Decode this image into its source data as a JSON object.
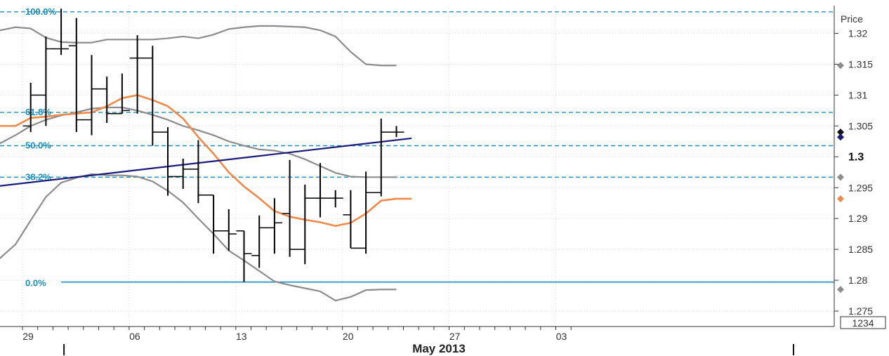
{
  "chart_data": {
    "type": "ohlc",
    "title": "",
    "ylabel": "Price",
    "ylim": [
      1.2725,
      1.3245
    ],
    "y_ticks": [
      "1.32",
      "1.315",
      "1.31",
      "1.305",
      "1.3",
      "1.295",
      "1.29",
      "1.285",
      "1.28",
      "1.275"
    ],
    "y_tick_values": [
      1.32,
      1.315,
      1.31,
      1.305,
      1.3,
      1.295,
      1.29,
      1.285,
      1.28,
      1.275
    ],
    "highlight_tick": "1.3",
    "x_tick_labels": [
      "29",
      "06",
      "13",
      "20",
      "27",
      "03"
    ],
    "x_tick_days": [
      0,
      7,
      14,
      21,
      28,
      35
    ],
    "month_label": "May 2013",
    "corner_label": "1234",
    "fibonacci_levels": [
      {
        "label": "100.0%",
        "value": 1.3235
      },
      {
        "label": "61.8%",
        "value": 1.3072
      },
      {
        "label": "50.0%",
        "value": 1.3018
      },
      {
        "label": "38.2%",
        "value": 1.2967
      },
      {
        "label": "0.0%",
        "value": 1.2797
      }
    ],
    "bars": [
      {
        "day": 1,
        "open": 1.305,
        "high": 1.312,
        "low": 1.304,
        "close": 1.31
      },
      {
        "day": 2,
        "open": 1.31,
        "high": 1.3195,
        "low": 1.305,
        "close": 1.3175
      },
      {
        "day": 3,
        "open": 1.3175,
        "high": 1.324,
        "low": 1.3165,
        "close": 1.3175
      },
      {
        "day": 4,
        "open": 1.318,
        "high": 1.3225,
        "low": 1.304,
        "close": 1.306
      },
      {
        "day": 5,
        "open": 1.306,
        "high": 1.3165,
        "low": 1.3035,
        "close": 1.311
      },
      {
        "day": 6,
        "open": 1.311,
        "high": 1.313,
        "low": 1.3055,
        "close": 1.307
      },
      {
        "day": 7,
        "open": 1.307,
        "high": 1.3135,
        "low": 1.307,
        "close": 1.3075
      },
      {
        "day": 8,
        "open": 1.316,
        "high": 1.3197,
        "low": 1.307,
        "close": 1.316
      },
      {
        "day": 9,
        "open": 1.316,
        "high": 1.318,
        "low": 1.3018,
        "close": 1.304
      },
      {
        "day": 10,
        "open": 1.304,
        "high": 1.3048,
        "low": 1.2937,
        "close": 1.2968
      },
      {
        "day": 11,
        "open": 1.2968,
        "high": 1.2997,
        "low": 1.2948,
        "close": 1.298
      },
      {
        "day": 12,
        "open": 1.298,
        "high": 1.3027,
        "low": 1.2925,
        "close": 1.2938
      },
      {
        "day": 13,
        "open": 1.2938,
        "high": 1.2938,
        "low": 1.2843,
        "close": 1.288
      },
      {
        "day": 14,
        "open": 1.288,
        "high": 1.2915,
        "low": 1.2848,
        "close": 1.2875
      },
      {
        "day": 15,
        "open": 1.288,
        "high": 1.288,
        "low": 1.2797,
        "close": 1.2843
      },
      {
        "day": 16,
        "open": 1.284,
        "high": 1.2905,
        "low": 1.282,
        "close": 1.2885
      },
      {
        "day": 17,
        "open": 1.2885,
        "high": 1.2933,
        "low": 1.2843,
        "close": 1.2893
      },
      {
        "day": 18,
        "open": 1.2908,
        "high": 1.2995,
        "low": 1.2838,
        "close": 1.285
      },
      {
        "day": 19,
        "open": 1.285,
        "high": 1.2955,
        "low": 1.2826,
        "close": 1.2933
      },
      {
        "day": 20,
        "open": 1.2933,
        "high": 1.299,
        "low": 1.2902,
        "close": 1.2933
      },
      {
        "day": 21,
        "open": 1.2933,
        "high": 1.2946,
        "low": 1.2918,
        "close": 1.2933
      },
      {
        "day": 22,
        "open": 1.2906,
        "high": 1.2946,
        "low": 1.2852,
        "close": 1.2852
      },
      {
        "day": 23,
        "open": 1.2852,
        "high": 1.2976,
        "low": 1.2843,
        "close": 1.2942
      },
      {
        "day": 24,
        "open": 1.2942,
        "high": 1.3062,
        "low": 1.2936,
        "close": 1.304
      },
      {
        "day": 25,
        "open": 1.304,
        "high": 1.305,
        "low": 1.3032,
        "close": 1.304
      }
    ],
    "series": [
      {
        "key": "bb_upper",
        "color": "#8c8c8c",
        "x": [
          -2,
          -1,
          0,
          1,
          2,
          3,
          4,
          5,
          6,
          7,
          8,
          9,
          10,
          11,
          12,
          13,
          14,
          15,
          16,
          17,
          18,
          19,
          20,
          21,
          22,
          23,
          24,
          25
        ],
        "y": [
          1.3205,
          1.3205,
          1.321,
          1.3208,
          1.3193,
          1.3186,
          1.3185,
          1.3185,
          1.319,
          1.319,
          1.319,
          1.319,
          1.3192,
          1.3195,
          1.3192,
          1.3198,
          1.3207,
          1.321,
          1.3212,
          1.3212,
          1.3211,
          1.321,
          1.3205,
          1.3195,
          1.317,
          1.315,
          1.3148,
          1.3148
        ]
      },
      {
        "key": "bb_middle",
        "color": "#8c8c8c",
        "x": [
          -2,
          -1,
          0,
          1,
          2,
          3,
          4,
          5,
          6,
          7,
          8,
          9,
          10,
          11,
          12,
          13,
          14,
          15,
          16,
          17,
          18,
          19,
          20,
          21,
          22,
          23,
          24,
          25
        ],
        "y": [
          1.301,
          1.3022,
          1.3035,
          1.305,
          1.306,
          1.3067,
          1.3072,
          1.3078,
          1.308,
          1.308,
          1.3075,
          1.3068,
          1.306,
          1.305,
          1.3043,
          1.3035,
          1.3025,
          1.3018,
          1.3012,
          1.301,
          1.3005,
          1.2996,
          1.2985,
          1.2974,
          1.2968,
          1.2967,
          1.2967,
          1.2967
        ]
      },
      {
        "key": "bb_lower",
        "color": "#8c8c8c",
        "x": [
          -2,
          -1,
          0,
          1,
          2,
          3,
          4,
          5,
          6,
          7,
          8,
          9,
          10,
          11,
          12,
          13,
          14,
          15,
          16,
          17,
          18,
          19,
          20,
          21,
          22,
          23,
          24,
          25
        ],
        "y": [
          1.2818,
          1.2836,
          1.2858,
          1.2897,
          1.2935,
          1.2958,
          1.2966,
          1.2972,
          1.297,
          1.297,
          1.2968,
          1.296,
          1.2945,
          1.2926,
          1.29,
          1.2875,
          1.2848,
          1.2832,
          1.2815,
          1.2798,
          1.2792,
          1.2787,
          1.2782,
          1.2767,
          1.2773,
          1.2784,
          1.2785,
          1.2785
        ]
      },
      {
        "key": "ma_short",
        "color": "#ef8a4a",
        "x": [
          -2,
          -1,
          0,
          1,
          2,
          3,
          4,
          5,
          6,
          7,
          8,
          9,
          10,
          11,
          12,
          13,
          14,
          15,
          16,
          17,
          18,
          19,
          20,
          21,
          22,
          23,
          24,
          25,
          26
        ],
        "y": [
          1.305,
          1.305,
          1.305,
          1.3063,
          1.3065,
          1.3068,
          1.307,
          1.3072,
          1.3082,
          1.3095,
          1.31,
          1.3092,
          1.3082,
          1.3062,
          1.3032,
          1.3005,
          1.2975,
          1.2952,
          1.2933,
          1.2912,
          1.2903,
          1.2898,
          1.2894,
          1.2888,
          1.2893,
          1.2908,
          1.2929,
          1.2932,
          1.2932
        ]
      },
      {
        "key": "ma_long",
        "color": "#1a1a7a",
        "x": [
          -2,
          26
        ],
        "y": [
          1.295,
          1.303
        ]
      }
    ],
    "current_price_markers": [
      {
        "value": 1.3148,
        "color": "#8c8c8c"
      },
      {
        "value": 1.304,
        "color": "#111111"
      },
      {
        "value": 1.3032,
        "color": "#1a1a7a"
      },
      {
        "value": 1.2967,
        "color": "#8c8c8c"
      },
      {
        "value": 1.2932,
        "color": "#ef8a4a"
      },
      {
        "value": 1.2785,
        "color": "#8c8c8c"
      }
    ],
    "grid": true,
    "colors": {
      "fib_line": "#1a8fbf",
      "bar": "#000000",
      "grid": "#d9d9d9"
    }
  }
}
